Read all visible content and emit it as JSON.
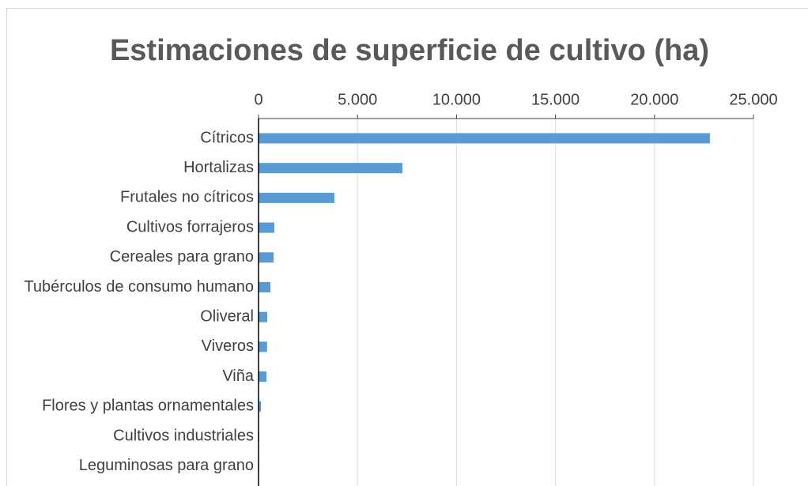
{
  "chart_data": {
    "type": "hbar",
    "title": "Estimaciones de superficie de cultivo (ha)",
    "categories": [
      "Cítricos",
      "Hortalizas",
      "Frutales no cítricos",
      "Cultivos forrajeros",
      "Cereales para grano",
      "Tubérculos de consumo humano",
      "Oliveral",
      "Viveros",
      "Viña",
      "Flores y plantas ornamentales",
      "Cultivos industriales",
      "Leguminosas para grano"
    ],
    "values": [
      22800,
      7270,
      3830,
      800,
      760,
      600,
      440,
      430,
      400,
      120,
      40,
      30
    ],
    "color": "#5b9bd5",
    "xlim": [
      0,
      25000
    ],
    "xticks": [
      0,
      {
        "value": 5000,
        "label": "5.000"
      },
      {
        "value": 10000,
        "label": "10.000"
      },
      {
        "value": 15000,
        "label": "15.000"
      },
      {
        "value": 20000,
        "label": "20.000"
      },
      {
        "value": 25000,
        "label": "25.000"
      }
    ],
    "grid": true
  }
}
